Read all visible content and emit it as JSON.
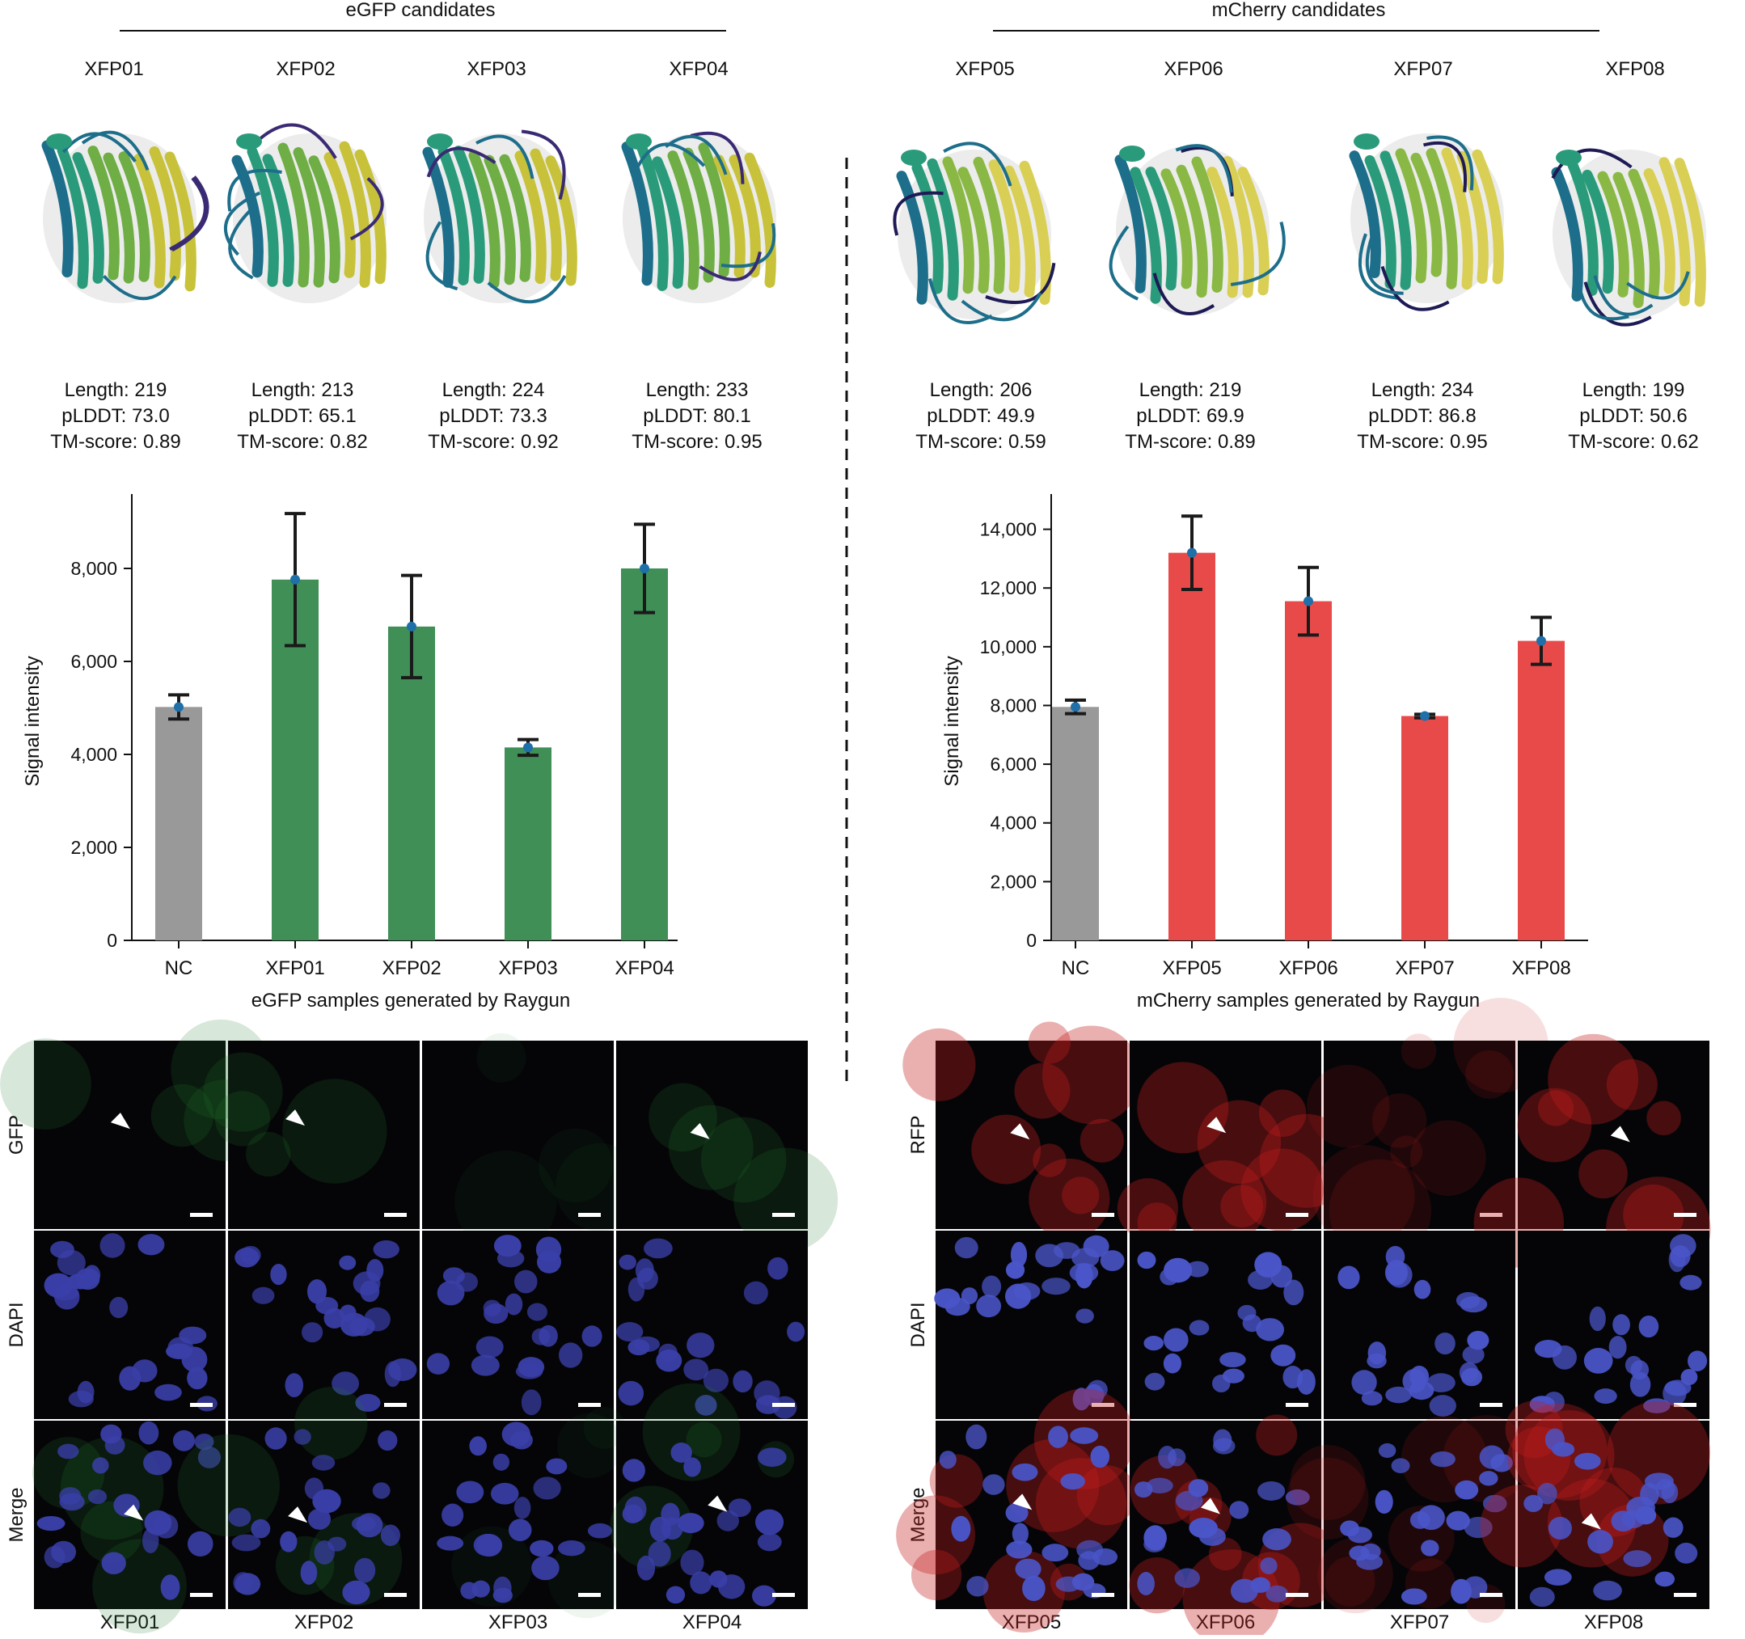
{
  "groups": [
    {
      "title": "eGFP candidates",
      "accent": "#3f8f57",
      "structure_colors": [
        "#c8c23a",
        "#6fad45",
        "#2a9b7a",
        "#1d6e8a",
        "#3a2a73"
      ],
      "candidates": [
        {
          "name": "XFP01",
          "length": "Length: 219",
          "plddt": "pLDDT: 73.0",
          "tm": "TM-score: 0.89"
        },
        {
          "name": "XFP02",
          "length": "Length: 213",
          "plddt": "pLDDT: 65.1",
          "tm": "TM-score: 0.82"
        },
        {
          "name": "XFP03",
          "length": "Length: 224",
          "plddt": "pLDDT: 73.3",
          "tm": "TM-score: 0.92"
        },
        {
          "name": "XFP04",
          "length": "Length: 233",
          "plddt": "pLDDT: 80.1",
          "tm": "TM-score: 0.95"
        }
      ],
      "microscopy": {
        "rows": [
          "GFP",
          "DAPI",
          "Merge"
        ],
        "columns": [
          "XFP01",
          "XFP02",
          "XFP03",
          "XFP04"
        ],
        "signal_color": "#1f7a2a",
        "nucleus_color": "#3a3fa8"
      }
    },
    {
      "title": "mCherry candidates",
      "accent": "#e84a4a",
      "structure_colors": [
        "#d9cf55",
        "#8ab845",
        "#2a9b7a",
        "#1d6e8a",
        "#1e1a55"
      ],
      "candidates": [
        {
          "name": "XFP05",
          "length": "Length: 206",
          "plddt": "pLDDT: 49.9",
          "tm": "TM-score: 0.59"
        },
        {
          "name": "XFP06",
          "length": "Length: 219",
          "plddt": "pLDDT: 69.9",
          "tm": "TM-score: 0.89"
        },
        {
          "name": "XFP07",
          "length": "Length: 234",
          "plddt": "pLDDT: 86.8",
          "tm": "TM-score: 0.95"
        },
        {
          "name": "XFP08",
          "length": "Length: 199",
          "plddt": "pLDDT: 50.6",
          "tm": "TM-score: 0.62"
        }
      ],
      "microscopy": {
        "rows": [
          "RFP",
          "DAPI",
          "Merge"
        ],
        "columns": [
          "XFP05",
          "XFP06",
          "XFP07",
          "XFP08"
        ],
        "signal_color": "#c41e1e",
        "nucleus_color": "#4a55c8"
      }
    }
  ],
  "chart_data": [
    {
      "type": "bar",
      "categories": [
        "NC",
        "XFP01",
        "XFP02",
        "XFP03",
        "XFP04"
      ],
      "values": [
        5020,
        7760,
        6750,
        4150,
        8000
      ],
      "errors": [
        260,
        1420,
        1100,
        170,
        950
      ],
      "colors": [
        "#999999",
        "#3f8f57",
        "#3f8f57",
        "#3f8f57",
        "#3f8f57"
      ],
      "point_color": "#1f6fa8",
      "title": "",
      "xlabel": "eGFP samples generated by Raygun",
      "ylabel": "Signal intensity",
      "ylim": [
        0,
        9600
      ],
      "yticks": [
        0,
        2000,
        4000,
        6000,
        8000
      ],
      "yticklabels": [
        "0",
        "2,000",
        "4,000",
        "6,000",
        "8,000"
      ],
      "grid": false
    },
    {
      "type": "bar",
      "categories": [
        "NC",
        "XFP05",
        "XFP06",
        "XFP07",
        "XFP08"
      ],
      "values": [
        7950,
        13200,
        11550,
        7640,
        10200
      ],
      "errors": [
        230,
        1250,
        1150,
        60,
        800
      ],
      "colors": [
        "#999999",
        "#e84a4a",
        "#e84a4a",
        "#e84a4a",
        "#e84a4a"
      ],
      "point_color": "#1f6fa8",
      "title": "",
      "xlabel": "mCherry samples generated by Raygun",
      "ylabel": "Signal intensity",
      "ylim": [
        0,
        15200
      ],
      "yticks": [
        0,
        2000,
        4000,
        6000,
        8000,
        10000,
        12000,
        14000
      ],
      "yticklabels": [
        "0",
        "2,000",
        "4,000",
        "6,000",
        "8,000",
        "10,000",
        "12,000",
        "14,000"
      ],
      "grid": false
    }
  ]
}
